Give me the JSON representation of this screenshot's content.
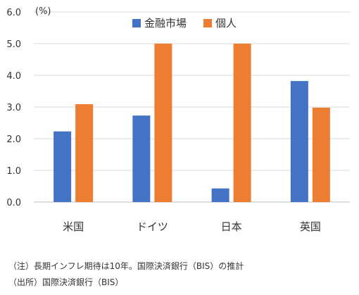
{
  "chart_data": {
    "type": "bar",
    "unit_label": "(%)",
    "categories": [
      "米国",
      "ドイツ",
      "日本",
      "英国"
    ],
    "series": [
      {
        "name": "金融市場",
        "color": "#4472C4",
        "values": [
          2.23,
          2.73,
          0.43,
          3.82
        ]
      },
      {
        "name": "個人",
        "color": "#ED7D31",
        "values": [
          3.09,
          5.0,
          5.0,
          2.98
        ]
      }
    ],
    "ylim": [
      0,
      6
    ],
    "yticks": [
      "0.0",
      "1.0",
      "2.0",
      "3.0",
      "4.0",
      "5.0",
      "6.0"
    ],
    "grid": true,
    "legend_position": "top"
  },
  "notes": {
    "note1": "（注）長期インフレ期待は10年。国際決済銀行（BIS）の推計",
    "note2": "（出所）国際決済銀行（BIS）"
  }
}
